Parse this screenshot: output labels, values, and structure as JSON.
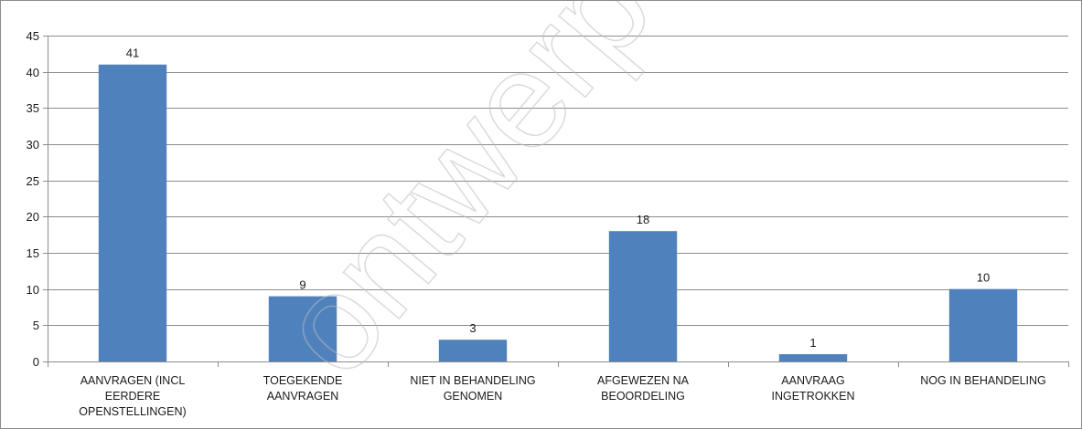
{
  "chart_data": {
    "type": "bar",
    "categories": [
      [
        "AANVRAGEN (INCL",
        "EERDERE",
        "OPENSTELLINGEN)"
      ],
      [
        "TOEGEKENDE",
        "AANVRAGEN"
      ],
      [
        "NIET IN BEHANDELING",
        "GENOMEN"
      ],
      [
        "AFGEWEZEN NA",
        "BEOORDELING"
      ],
      [
        "AANVRAAG",
        "INGETROKKEN"
      ],
      [
        "NOG IN BEHANDELING"
      ]
    ],
    "values": [
      41,
      9,
      3,
      18,
      1,
      10
    ],
    "data_labels": [
      "41",
      "9",
      "3",
      "18",
      "1",
      "10"
    ],
    "ylim": [
      0,
      45
    ],
    "yticks": [
      "0",
      "5",
      "10",
      "15",
      "20",
      "25",
      "30",
      "35",
      "40",
      "45"
    ],
    "grid": true,
    "legend": "none",
    "colors": {
      "bar": "#4f81bd",
      "grid": "#8c8c8c",
      "axis": "#8c8c8c"
    }
  },
  "watermark": {
    "text": "ontwerp-ja"
  }
}
